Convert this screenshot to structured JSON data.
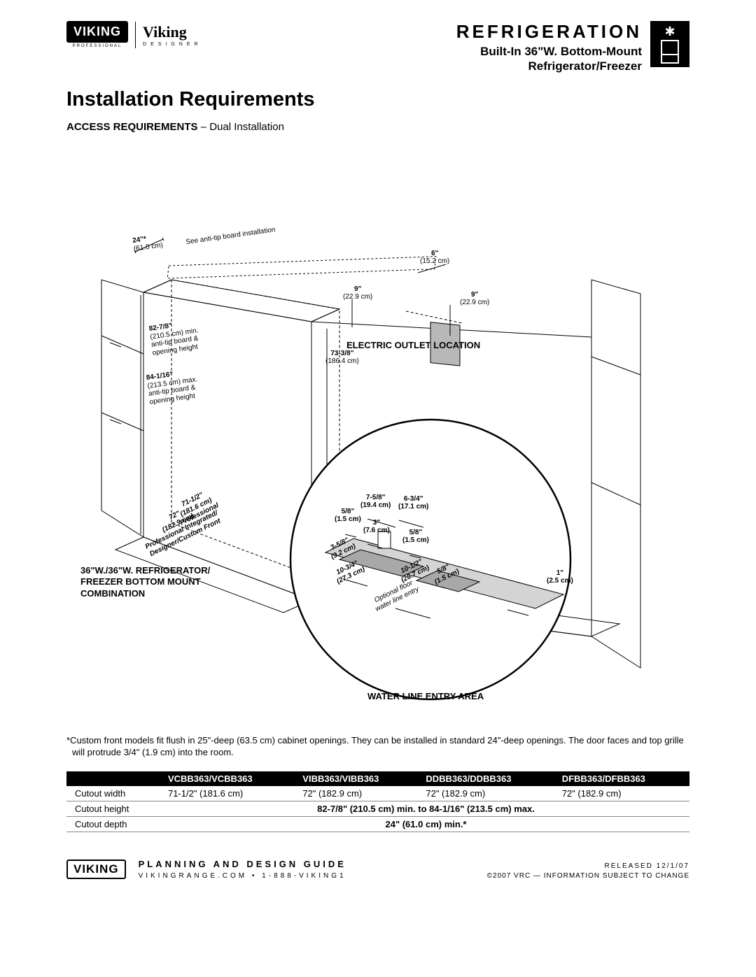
{
  "header": {
    "logo_pro_text": "VIKING",
    "logo_pro_sub": "PROFESSIONAL",
    "logo_designer_text": "Viking",
    "logo_designer_sub": "DESIGNER",
    "category": "REFRIGERATION",
    "subtitle_line1": "Built-In 36\"W. Bottom-Mount",
    "subtitle_line2": "Refrigerator/Freezer"
  },
  "main_title": "Installation Requirements",
  "section_label_bold": "ACCESS REQUIREMENTS",
  "section_label_rest": " – Dual Installation",
  "diagram": {
    "d24": "24\"*",
    "d24_sub": "(61.0 cm)",
    "antitip_note": "See anti-tip board installation",
    "d6": "6\"",
    "d6_sub": "(15.2 cm)",
    "d9a": "9\"",
    "d9a_sub": "(22.9 cm)",
    "d9b": "9\"",
    "d9b_sub": "(22.9 cm)",
    "outlet_label": "ELECTRIC OUTLET LOCATION",
    "h827": "82-7/8\"",
    "h827_sub": "(210.5 cm) min.\nanti-tip board &\nopening height",
    "h841": "84-1/16\"",
    "h841_sub": "(213.5 cm) max.\nanti-tip board &\nopening height",
    "h733": "73-3/8\"",
    "h733_sub": "(186.4 cm)",
    "w71": "71-1/2\"\n(181.6 cm)\nProfessional",
    "w72": "72\"\n(182.9 cm)\nProfessional Integrated/\nDesigner/Custom Front",
    "combo_label": "36\"W./36\"W. REFRIGERATOR/\nFREEZER BOTTOM MOUNT\nCOMBINATION",
    "water_label": "WATER LINE ENTRY AREA",
    "c758": "7-5/8\"\n(19.4 cm)",
    "c634": "6-3/4\"\n(17.1 cm)",
    "c58a": "5/8\"\n(1.5 cm)",
    "c3": "3\"\n(7.6 cm)",
    "c58b": "5/8\"\n(1.5 cm)",
    "c358": "3-5/8\"\n(9.2 cm)",
    "c1034": "10-3/4\"\n(27.3 cm)",
    "c1012": "10-1/2\"\n(26.7 cm)",
    "c58c": "5/8\"\n(1.5 cm)",
    "c1": "1\"\n(2.5 cm)",
    "opt_water": "Optional floor\nwater line entry"
  },
  "footnote": "*Custom front models fit flush in 25\"-deep (63.5 cm) cabinet openings. They can be installed in standard 24\"-deep openings. The door faces and top grille will protrude 3/4\" (1.9 cm) into the room.",
  "table": {
    "columns": [
      "",
      "VCBB363/VCBB363",
      "VIBB363/VIBB363",
      "DDBB363/DDBB363",
      "DFBB363/DFBB363"
    ],
    "rows": [
      [
        "Cutout width",
        "71-1/2\" (181.6 cm)",
        "72\" (182.9 cm)",
        "72\" (182.9 cm)",
        "72\" (182.9 cm)"
      ],
      [
        "Cutout height",
        {
          "colspan": 4,
          "text": "82-7/8\" (210.5 cm) min. to 84-1/16\" (213.5 cm) max."
        }
      ],
      [
        "Cutout depth",
        {
          "colspan": 4,
          "text": "24\" (61.0 cm) min.*"
        }
      ]
    ]
  },
  "footer": {
    "logo": "VIKING",
    "line1": "PLANNING AND DESIGN GUIDE",
    "line2": "VIKINGRANGE.COM   •   1-888-VIKING1",
    "released": "RELEASED 12/1/07",
    "copyright": "©2007  VRC — INFORMATION SUBJECT TO CHANGE"
  }
}
